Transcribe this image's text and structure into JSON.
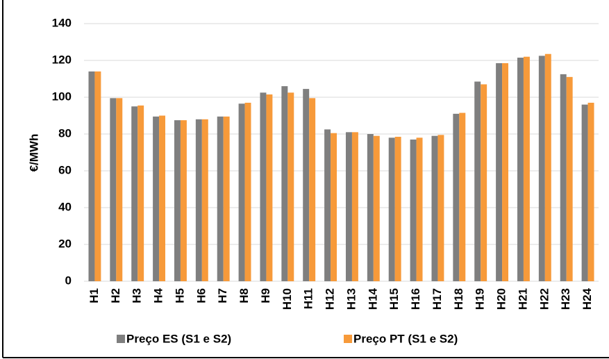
{
  "chart_data": {
    "type": "bar",
    "y_label": "€/MWh",
    "categories": [
      "H1",
      "H2",
      "H3",
      "H4",
      "H5",
      "H6",
      "H7",
      "H8",
      "H9",
      "H10",
      "H11",
      "H12",
      "H13",
      "H14",
      "H15",
      "H16",
      "H17",
      "H18",
      "H19",
      "H20",
      "H21",
      "H22",
      "H23",
      "H24"
    ],
    "series": [
      {
        "name": "Preço ES (S1 e S2)",
        "color": "#7f7f7f",
        "values": [
          114,
          99.5,
          95,
          89.5,
          87.5,
          88,
          89.5,
          96.5,
          102.5,
          106,
          104.5,
          82.5,
          81,
          80,
          78,
          77,
          79,
          91,
          108.5,
          118.5,
          121.5,
          122.5,
          112.5,
          96
        ]
      },
      {
        "name": "Preço PT (S1 e S2)",
        "color": "#f79a3a",
        "values": [
          114,
          99.5,
          95.5,
          90,
          87.5,
          88,
          89.5,
          97,
          101.5,
          102.5,
          99.5,
          80.5,
          81,
          79,
          78.5,
          78,
          79.5,
          91.5,
          107,
          118.5,
          122,
          123.5,
          111,
          97
        ]
      }
    ],
    "ylim": [
      0,
      140
    ],
    "yticks": [
      0,
      20,
      40,
      60,
      80,
      100,
      120,
      140
    ],
    "grid": true,
    "legend": "bottom"
  }
}
